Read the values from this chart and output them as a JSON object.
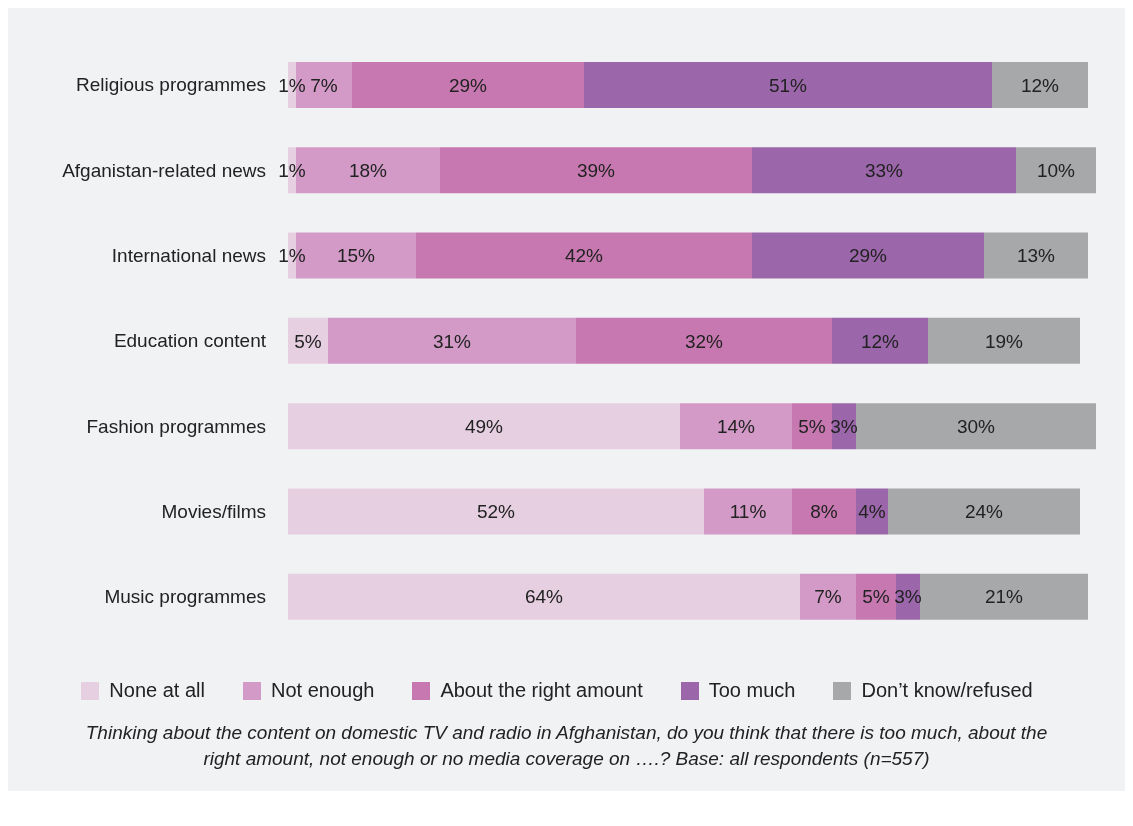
{
  "chart_data": {
    "type": "bar",
    "orientation": "horizontal",
    "stacked": true,
    "legend": "bottom",
    "categories": [
      "Religious programmes",
      "Afganistan-related news",
      "International news",
      "Education content",
      "Fashion programmes",
      "Movies/films",
      "Music programmes"
    ],
    "series": [
      {
        "name": "None at all",
        "color": "#e6cfe0",
        "values": [
          1,
          1,
          1,
          5,
          49,
          52,
          64
        ],
        "value_labels": [
          "1%",
          "1%",
          "1%",
          "5%",
          "49%",
          "52%",
          "64%"
        ]
      },
      {
        "name": "Not enough",
        "color": "#d39ac8",
        "values": [
          7,
          18,
          15,
          31,
          14,
          11,
          7
        ],
        "value_labels": [
          "7%",
          "18%",
          "15%",
          "31%",
          "14%",
          "11%",
          "7%"
        ]
      },
      {
        "name": "About the right amount",
        "color": "#c878b0",
        "values": [
          29,
          39,
          42,
          32,
          5,
          8,
          5
        ],
        "value_labels": [
          "29%",
          "39%",
          "42%",
          "32%",
          "5%",
          "8%",
          "5%"
        ]
      },
      {
        "name": "Too much",
        "color": "#9b66aa",
        "values": [
          51,
          33,
          29,
          12,
          3,
          4,
          3
        ],
        "value_labels": [
          "51%",
          "33%",
          "29%",
          "12%",
          "3%",
          "4%",
          "3%"
        ]
      },
      {
        "name": "Don’t know/refused",
        "color": "#a7a8aa",
        "values": [
          12,
          10,
          13,
          19,
          30,
          24,
          21
        ],
        "value_labels": [
          "12%",
          "10%",
          "13%",
          "19%",
          "30%",
          "24%",
          "21%"
        ]
      }
    ],
    "annotations": [
      "Thinking about the content on domestic TV and radio in Afghanistan, do you think that there is too much, about the right amount, not enough or no media coverage on ….? Base: all respondents (n=557)"
    ]
  }
}
